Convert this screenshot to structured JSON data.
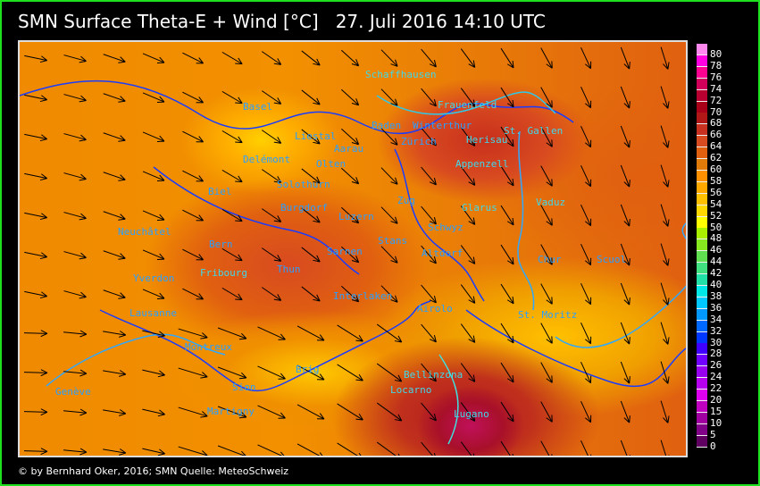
{
  "header": {
    "title": "SMN Surface Theta-E + Wind [°C]   27. Juli 2016 14:10 UTC"
  },
  "legend": {
    "levels": [
      "80",
      "78",
      "76",
      "74",
      "72",
      "70",
      "68",
      "66",
      "64",
      "62",
      "60",
      "58",
      "56",
      "54",
      "52",
      "50",
      "48",
      "46",
      "44",
      "42",
      "40",
      "38",
      "36",
      "34",
      "32",
      "30",
      "28",
      "26",
      "24",
      "22",
      "20",
      "15",
      "10",
      "5",
      "0"
    ],
    "colors": [
      "#ff88ee",
      "#ff00e0",
      "#ff0090",
      "#d0005a",
      "#b80030",
      "#a80018",
      "#b01818",
      "#c83020",
      "#d84a20",
      "#e06010",
      "#e07a08",
      "#ff9000",
      "#ffa800",
      "#ffc000",
      "#ffd800",
      "#ffff00",
      "#a8f000",
      "#88e820",
      "#60e050",
      "#40e080",
      "#20e0a8",
      "#00e8e8",
      "#00c8ff",
      "#0098ff",
      "#0068ff",
      "#0038ff",
      "#4000ff",
      "#7000ff",
      "#9800f0",
      "#b800f0",
      "#e000f0",
      "#c000c0",
      "#a000a0",
      "#800088",
      "#600060"
    ]
  },
  "map": {
    "cities": [
      "Schaffhausen",
      "Frauenfeld",
      "Basel",
      "Winterthur",
      "Baden",
      "Liestal",
      "St. Gallen",
      "Zürich",
      "Herisau",
      "Aarau",
      "Delémont",
      "Olten",
      "Appenzell",
      "Solothurn",
      "Biel",
      "Vaduz",
      "Burgdorf",
      "Zug",
      "Glarus",
      "Luzern",
      "Neuchâtel",
      "Schwyz",
      "Bern",
      "Stans",
      "Altdorf",
      "Chur",
      "Sarnen",
      "Scuol",
      "Yverdon",
      "Fribourg",
      "Thun",
      "Interlaken",
      "Airolo",
      "St. Moritz",
      "Lausanne",
      "Montreux",
      "Brig",
      "Bellinzona",
      "Locarno",
      "Sion",
      "Genève",
      "Martigny",
      "Lugano"
    ],
    "wind_arrow_color": "#000000"
  },
  "footer": {
    "credit": "© by Bernhard Oker, 2016; SMN Quelle: MeteoSchweiz"
  }
}
